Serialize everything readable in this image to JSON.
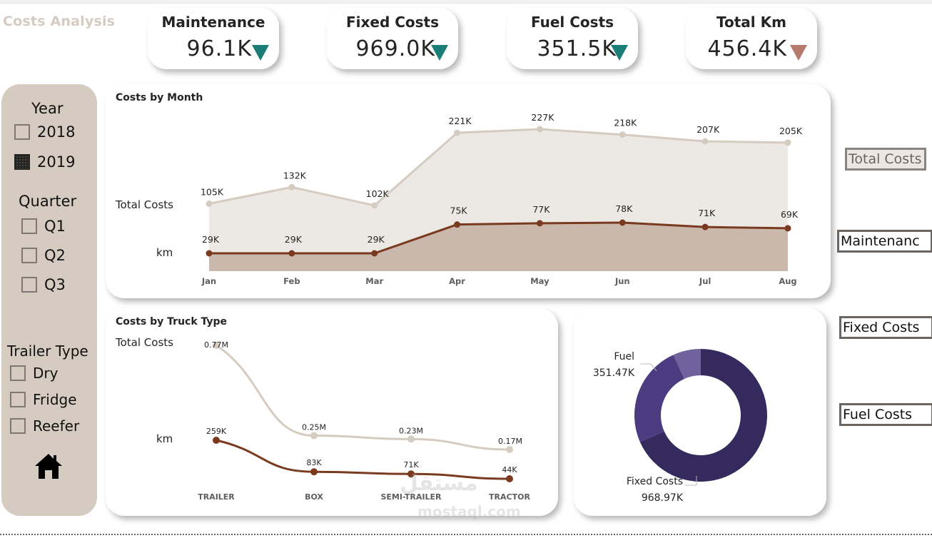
{
  "app": {
    "title": "Costs Analysis"
  },
  "kpis": [
    {
      "label": "Maintenance",
      "value": "96.1K",
      "trend": "down",
      "trend_color": "#1a7d77"
    },
    {
      "label": "Fixed Costs",
      "value": "969.0K",
      "trend": "down",
      "trend_color": "#1a7d77"
    },
    {
      "label": "Fuel Costs",
      "value": "351.5K",
      "trend": "down",
      "trend_color": "#1a7d77"
    },
    {
      "label": "Total Km",
      "value": "456.4K",
      "trend": "down",
      "trend_color": "#b57a6c"
    }
  ],
  "sidebar": {
    "year": {
      "title": "Year",
      "items": [
        {
          "label": "2018",
          "checked": false
        },
        {
          "label": "2019",
          "checked": true
        }
      ]
    },
    "quarter": {
      "title": "Quarter",
      "items": [
        {
          "label": "Q1",
          "checked": false
        },
        {
          "label": "Q2",
          "checked": false
        },
        {
          "label": "Q3",
          "checked": false
        }
      ]
    },
    "trailer": {
      "title": "Trailer Type",
      "items": [
        {
          "label": "Dry",
          "checked": false
        },
        {
          "label": "Fridge",
          "checked": false
        },
        {
          "label": "Reefer",
          "checked": false
        }
      ]
    },
    "home_icon": "home-icon"
  },
  "legend_buttons": [
    {
      "label": "Total Costs",
      "active": true
    },
    {
      "label": "Maintenanc",
      "active": false
    },
    {
      "label": "Fixed Costs",
      "active": false
    },
    {
      "label": "Fuel Costs",
      "active": false
    }
  ],
  "colors": {
    "total_line": "#d6cbc0",
    "total_area": "#ece8e4",
    "km_line": "#7a3a20",
    "km_area": "#cbb8ad",
    "donut": [
      "#352a5e",
      "#4d3b82",
      "#71619c"
    ]
  },
  "watermark": {
    "arabic": "مستقل",
    "latin": "mostaql.com"
  },
  "chart_data": [
    {
      "type": "area",
      "title": "Costs by Month",
      "categories": [
        "Jan",
        "Feb",
        "Mar",
        "Apr",
        "May",
        "Jun",
        "Jul",
        "Aug"
      ],
      "series": [
        {
          "name": "Total Costs",
          "values": [
            105,
            132,
            102,
            221,
            227,
            218,
            207,
            205
          ],
          "labels": [
            "105K",
            "132K",
            "102K",
            "221K",
            "227K",
            "218K",
            "207K",
            "205K"
          ]
        },
        {
          "name": "km",
          "values": [
            29,
            29,
            29,
            75,
            77,
            78,
            71,
            69
          ],
          "labels": [
            "29K",
            "29K",
            "29K",
            "75K",
            "77K",
            "78K",
            "71K",
            "69K"
          ]
        }
      ],
      "unit": "K",
      "grid": false,
      "legend": "left"
    },
    {
      "type": "line",
      "title": "Costs by Truck Type",
      "categories": [
        "TRAILER",
        "BOX",
        "SEMI-TRAILER",
        "TRACTOR"
      ],
      "series": [
        {
          "name": "Total Costs",
          "values": [
            0.77,
            0.25,
            0.23,
            0.17
          ],
          "labels": [
            "0.77M",
            "0.25M",
            "0.23M",
            "0.17M"
          ],
          "unit": "M"
        },
        {
          "name": "km",
          "values": [
            259,
            83,
            71,
            44
          ],
          "labels": [
            "259K",
            "83K",
            "71K",
            "44K"
          ],
          "unit": "K"
        }
      ],
      "grid": false,
      "legend": "left"
    },
    {
      "type": "pie",
      "title": "",
      "donut": true,
      "categories": [
        "Fixed Costs",
        "Fuel",
        "Maintenance"
      ],
      "values": [
        968.97,
        351.47,
        96.1
      ],
      "labels": [
        "968.97K",
        "351.47K",
        ""
      ],
      "unit": "K"
    }
  ]
}
